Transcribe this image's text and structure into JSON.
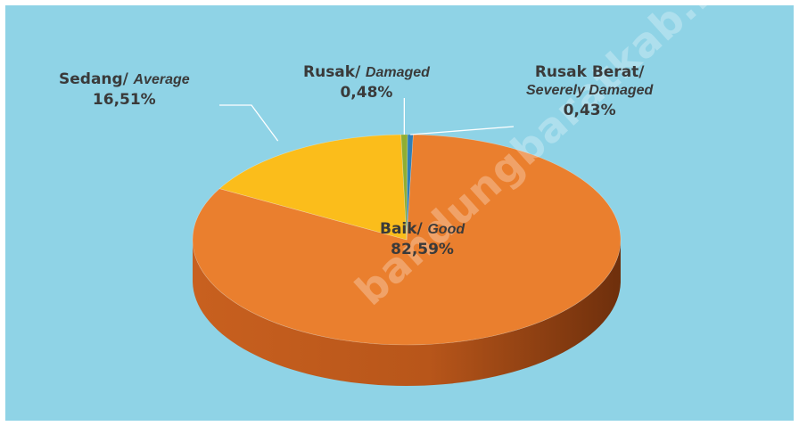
{
  "colors": {
    "background": "#8fd3e6",
    "baik": "#ea7f2e",
    "baik_side": "#b8561a",
    "sedang": "#fbbd1b",
    "sedang_side": "#c9920c",
    "rusak": "#8fae32",
    "rusak_berat": "#2f7fb6",
    "leader": "#ffffff"
  },
  "watermark": "bandungbaratkab.bps.go.id",
  "chart_data": {
    "type": "pie",
    "style": "3d",
    "title": "",
    "slices": [
      {
        "id": "baik",
        "label_id": "Baik/",
        "label_en": "Good",
        "value": 82.59,
        "value_text": "82,59%"
      },
      {
        "id": "sedang",
        "label_id": "Sedang/",
        "label_en": "Average",
        "value": 16.51,
        "value_text": "16,51%"
      },
      {
        "id": "rusak",
        "label_id": "Rusak/",
        "label_en": "Damaged",
        "value": 0.48,
        "value_text": "0,48%"
      },
      {
        "id": "rusak_berat",
        "label_id": "Rusak Berat/",
        "label_en": "Severely Damaged",
        "value": 0.43,
        "value_text": "0,43%"
      }
    ],
    "legend": "none"
  }
}
